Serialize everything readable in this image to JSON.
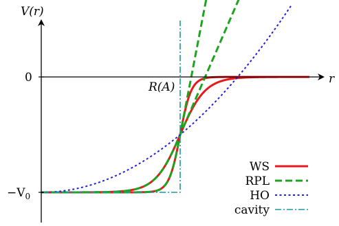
{
  "chart_data": {
    "type": "line",
    "title": "",
    "ylabel": "V(r)",
    "xlabel": "r",
    "x_marker_label": "R(A)",
    "y_tick_zero": "0",
    "y_tick_depth": "−V0",
    "y_tick_depth_base": "−V",
    "y_tick_depth_sub": "0",
    "units": "r normalized so R(A) = 1; V normalized so V0 = 1",
    "xlim": [
      0,
      2.0
    ],
    "ylim": [
      -1.0,
      0.0
    ],
    "legend_position": "bottom-right",
    "series": [
      {
        "name": "WS",
        "color": "#e41a1c",
        "style": "solid",
        "variants": [
          {
            "V0": 1,
            "R": 1,
            "a": 0.04
          },
          {
            "V0": 1,
            "R": 1,
            "a": 0.09
          }
        ]
      },
      {
        "name": "RPL",
        "color": "#1fa31f",
        "style": "dashed",
        "variants": [
          {
            "V0": 1,
            "R": 1,
            "a": 0.04
          },
          {
            "V0": 1,
            "R": 1,
            "a": 0.09
          }
        ]
      },
      {
        "name": "HO",
        "color": "#1f1fe0",
        "style": "dotted",
        "variants": [
          {
            "V0": 1,
            "R": 1,
            "k": 2
          }
        ]
      },
      {
        "name": "cavity",
        "color": "#1a9a9a",
        "style": "dashdot",
        "variants": [
          {
            "V0": 1,
            "R": 1
          }
        ]
      }
    ]
  }
}
